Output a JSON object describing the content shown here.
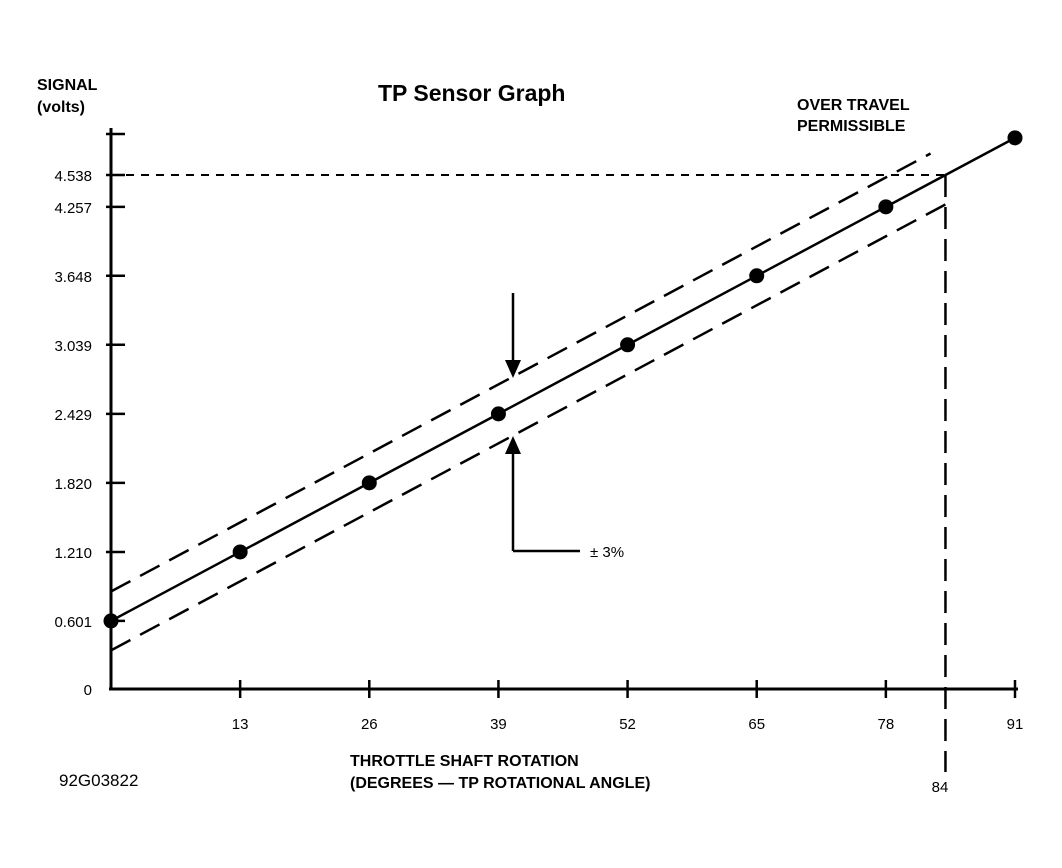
{
  "chart_data": {
    "type": "line",
    "title": "TP Sensor Graph",
    "ylabel_line1": "SIGNAL",
    "ylabel_line2": "(volts)",
    "xlabel_line1": "THROTTLE SHAFT ROTATION",
    "xlabel_line2": "(DEGREES — TP ROTATIONAL ANGLE)",
    "annotation_over_travel_line1": "OVER TRAVEL",
    "annotation_over_travel_line2": "PERMISSIBLE",
    "tolerance_label": "± 3%",
    "figure_id": "92G03822",
    "xlim": [
      0,
      91
    ],
    "ylim": [
      0,
      4.9
    ],
    "x_ticks": [
      13,
      26,
      39,
      52,
      65,
      78,
      91
    ],
    "x_tick_labels": [
      "13",
      "26",
      "39",
      "52",
      "65",
      "78",
      "91"
    ],
    "y_ticks": [
      0,
      0.601,
      1.21,
      1.82,
      2.429,
      3.039,
      3.648,
      4.257,
      4.538
    ],
    "y_tick_labels": [
      "0",
      "0.601",
      "1.210",
      "1.820",
      "2.429",
      "3.039",
      "3.648",
      "4.257",
      "4.538"
    ],
    "series": [
      {
        "x": [
          0,
          13,
          26,
          39,
          52,
          65,
          78,
          91
        ],
        "y": [
          0.601,
          1.21,
          1.82,
          2.429,
          3.039,
          3.648,
          4.257,
          4.866
        ]
      }
    ],
    "tolerance_band_volts": 0.26,
    "reference_x": 84,
    "reference_x_label": "84",
    "reference_y": 4.538,
    "grid": false,
    "legend": "none"
  }
}
